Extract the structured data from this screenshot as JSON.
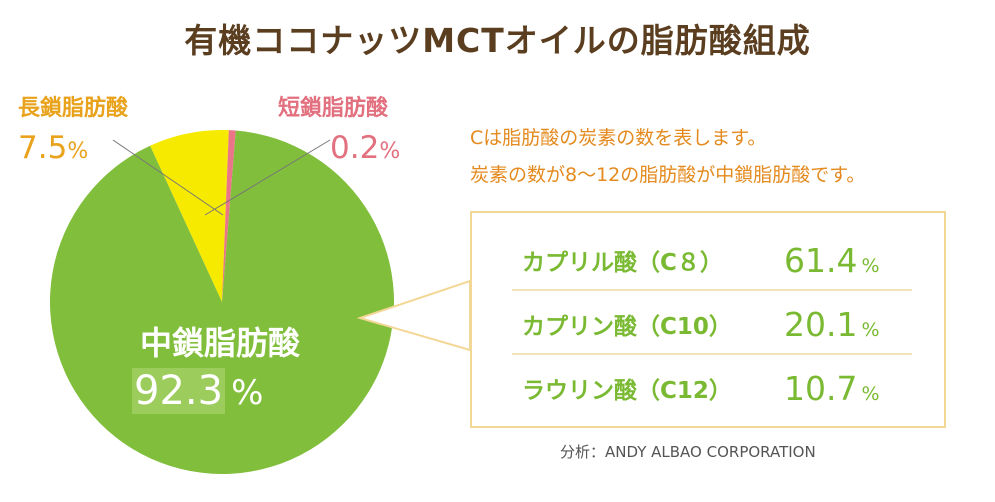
{
  "title": "有機ココナッツMCTオイルの脂肪酸組成",
  "chart_data": {
    "type": "pie",
    "title": "有機ココナッツMCTオイルの脂肪酸組成",
    "unit": "%",
    "slices": [
      {
        "label": "中鎖脂肪酸",
        "value": 92.3,
        "color": "#80be3b"
      },
      {
        "label": "長鎖脂肪酸",
        "value": 7.5,
        "color": "#f6ea00"
      },
      {
        "label": "短鎖脂肪酸",
        "value": 0.2,
        "color": "#ea7588"
      }
    ],
    "breakdown": [
      {
        "label": "カプリル酸（C８）",
        "value": 61.4
      },
      {
        "label": "カプリン酸（C10）",
        "value": 20.1
      },
      {
        "label": "ラウリン酸（C12）",
        "value": 10.7
      }
    ]
  },
  "labels": {
    "long": {
      "name": "長鎖脂肪酸",
      "value": "7.5",
      "pct": "%"
    },
    "short": {
      "name": "短鎖脂肪酸",
      "value": "0.2",
      "pct": "%"
    },
    "medium": {
      "name": "中鎖脂肪酸",
      "value": "92.3",
      "pct": "%"
    }
  },
  "notes": [
    "Cは脂肪酸の炭素の数を表します。",
    "炭素の数が8〜12の脂肪酸が中鎖脂肪酸です。"
  ],
  "breakdown_rows": [
    {
      "name": "カプリル酸（C８）",
      "value": "61.4",
      "pct": "%"
    },
    {
      "name": "カプリン酸（C10）",
      "value": "20.1",
      "pct": "%"
    },
    {
      "name": "ラウリン酸（C12）",
      "value": "10.7",
      "pct": "%"
    }
  ],
  "source": "分析：ANDY ALBAO CORPORATION"
}
